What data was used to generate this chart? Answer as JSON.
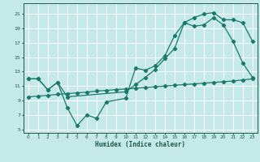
{
  "xlabel": "Humidex (Indice chaleur)",
  "background_color": "#c5e8e8",
  "grid_color": "#ffffff",
  "line_color": "#1a7a6a",
  "xlim": [
    -0.5,
    23.5
  ],
  "ylim": [
    4.5,
    22.5
  ],
  "xticks": [
    0,
    1,
    2,
    3,
    4,
    5,
    6,
    7,
    8,
    9,
    10,
    11,
    12,
    13,
    14,
    15,
    16,
    17,
    18,
    19,
    20,
    21,
    22,
    23
  ],
  "yticks": [
    5,
    7,
    9,
    11,
    13,
    15,
    17,
    19,
    21
  ],
  "line1_x": [
    0,
    1,
    2,
    3,
    4,
    5,
    6,
    7,
    8,
    10,
    11,
    12,
    13,
    14,
    15,
    16,
    17,
    18,
    19,
    20,
    21,
    22,
    23
  ],
  "line1_y": [
    12,
    12,
    10.5,
    11.5,
    8,
    5.5,
    7,
    6.5,
    8.8,
    9.3,
    13.5,
    13.2,
    13.8,
    15.2,
    18,
    19.8,
    19.3,
    19.5,
    20.5,
    19.5,
    17.2,
    14.2,
    12.2
  ],
  "line2_x": [
    0,
    1,
    2,
    3,
    4,
    10,
    11,
    12,
    13,
    14,
    15,
    16,
    17,
    18,
    19,
    20,
    21,
    22,
    23
  ],
  "line2_y": [
    12,
    12,
    10.5,
    11.5,
    9.5,
    10.2,
    11.2,
    12.2,
    13.3,
    14.8,
    16.2,
    19.8,
    20.5,
    21,
    21.2,
    20.2,
    20.2,
    19.8,
    17.2
  ],
  "line3_x": [
    0,
    1,
    2,
    3,
    4,
    5,
    6,
    7,
    8,
    9,
    10,
    11,
    12,
    13,
    14,
    15,
    16,
    17,
    18,
    19,
    20,
    21,
    22,
    23
  ],
  "line3_y": [
    9.5,
    9.6,
    9.7,
    9.85,
    9.95,
    10.05,
    10.15,
    10.3,
    10.4,
    10.5,
    10.6,
    10.7,
    10.8,
    10.9,
    11.0,
    11.1,
    11.2,
    11.3,
    11.4,
    11.5,
    11.6,
    11.7,
    11.85,
    12.0
  ]
}
